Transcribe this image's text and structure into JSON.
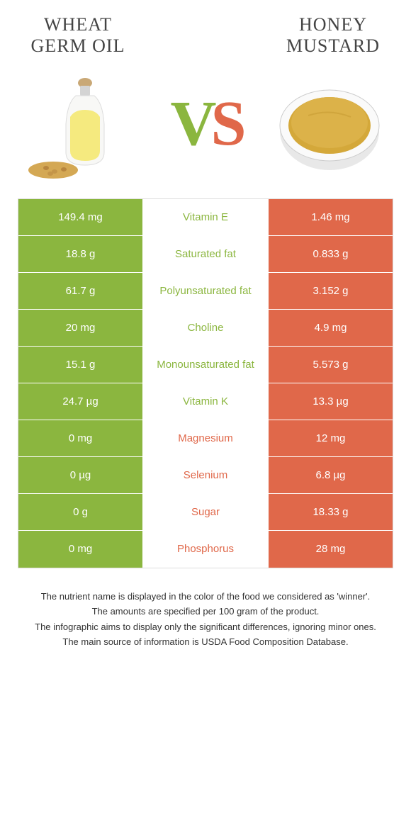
{
  "food_left": {
    "title": "Wheat Germ Oil",
    "color": "#8bb63f"
  },
  "food_right": {
    "title": "Honey Mustard",
    "color": "#e0684a"
  },
  "rows": [
    {
      "left": "149.4 mg",
      "nutrient": "Vitamin E",
      "winner": "left",
      "right": "1.46 mg"
    },
    {
      "left": "18.8 g",
      "nutrient": "Saturated fat",
      "winner": "left",
      "right": "0.833 g"
    },
    {
      "left": "61.7 g",
      "nutrient": "Polyunsaturated fat",
      "winner": "left",
      "right": "3.152 g"
    },
    {
      "left": "20 mg",
      "nutrient": "Choline",
      "winner": "left",
      "right": "4.9 mg"
    },
    {
      "left": "15.1 g",
      "nutrient": "Monounsaturated fat",
      "winner": "left",
      "right": "5.573 g"
    },
    {
      "left": "24.7 µg",
      "nutrient": "Vitamin K",
      "winner": "left",
      "right": "13.3 µg"
    },
    {
      "left": "0 mg",
      "nutrient": "Magnesium",
      "winner": "right",
      "right": "12 mg"
    },
    {
      "left": "0 µg",
      "nutrient": "Selenium",
      "winner": "right",
      "right": "6.8 µg"
    },
    {
      "left": "0 g",
      "nutrient": "Sugar",
      "winner": "right",
      "right": "18.33 g"
    },
    {
      "left": "0 mg",
      "nutrient": "Phosphorus",
      "winner": "right",
      "right": "28 mg"
    }
  ],
  "footer": {
    "l1": "The nutrient name is displayed in the color of the food we considered as 'winner'.",
    "l2": "The amounts are specified per 100 gram of the product.",
    "l3": "The infographic aims to display only the significant differences, ignoring minor ones.",
    "l4": "The main source of information is USDA Food Composition Database."
  }
}
